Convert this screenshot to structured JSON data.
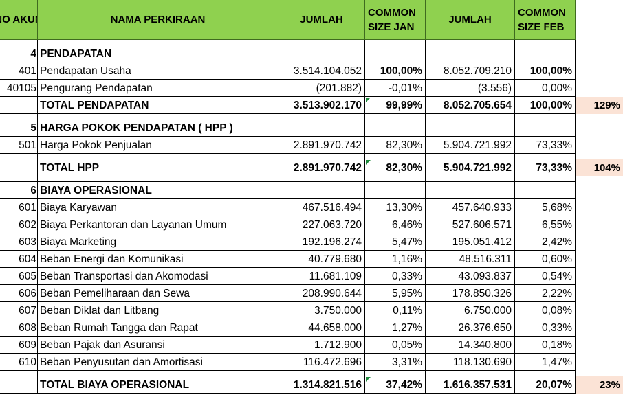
{
  "header": {
    "no_akun": "NO AKUN",
    "nama": "NAMA PERKIRAAN",
    "jumlah_jan": "JUMLAH",
    "cs_jan": "COMMON SIZE JAN",
    "jumlah_feb": "JUMLAH",
    "cs_feb": "COMMON SIZE FEB"
  },
  "rows": [
    {
      "kind": "blank"
    },
    {
      "kind": "section",
      "no": "4",
      "name": "PENDAPATAN"
    },
    {
      "kind": "item",
      "no": "401",
      "name": "Pendapatan Usaha",
      "jan": "3.514.104.052",
      "csjan": "100,00%",
      "feb": "8.052.709.210",
      "csfeb": "100,00%",
      "boldcs": true
    },
    {
      "kind": "item",
      "no": "40105",
      "name": "Pengurang Pendapatan",
      "jan": "(201.882)",
      "csjan": "-0,01%",
      "feb": "(3.556)",
      "csfeb": "0,00%"
    },
    {
      "kind": "total",
      "name": "TOTAL  PENDAPATAN",
      "jan": "3.513.902.170",
      "csjan": "99,99%",
      "feb": "8.052.705.654",
      "csfeb": "100,00%",
      "extra": "129%",
      "flag": true
    },
    {
      "kind": "blank"
    },
    {
      "kind": "section",
      "no": "5",
      "name": "HARGA POKOK PENDAPATAN ( HPP )"
    },
    {
      "kind": "item",
      "no": "501",
      "name": "Harga Pokok Penjualan",
      "jan": "2.891.970.742",
      "csjan": "82,30%",
      "feb": "5.904.721.992",
      "csfeb": "73,33%"
    },
    {
      "kind": "blank"
    },
    {
      "kind": "total",
      "name": "TOTAL  HPP",
      "jan": "2.891.970.742",
      "csjan": "82,30%",
      "feb": "5.904.721.992",
      "csfeb": "73,33%",
      "extra": "104%",
      "flag": true
    },
    {
      "kind": "blank"
    },
    {
      "kind": "section",
      "no": "6",
      "name": "BIAYA OPERASIONAL"
    },
    {
      "kind": "item",
      "no": "601",
      "name": "Biaya Karyawan",
      "jan": "467.516.494",
      "csjan": "13,30%",
      "feb": "457.640.933",
      "csfeb": "5,68%"
    },
    {
      "kind": "item",
      "no": "602",
      "name": "Biaya Perkantoran dan Layanan Umum",
      "jan": "227.063.720",
      "csjan": "6,46%",
      "feb": "527.606.571",
      "csfeb": "6,55%"
    },
    {
      "kind": "item",
      "no": "603",
      "name": "Biaya Marketing",
      "jan": "192.196.274",
      "csjan": "5,47%",
      "feb": "195.051.412",
      "csfeb": "2,42%"
    },
    {
      "kind": "item",
      "no": "604",
      "name": "Beban Energi dan Komunikasi",
      "jan": "40.779.680",
      "csjan": "1,16%",
      "feb": "48.516.311",
      "csfeb": "0,60%"
    },
    {
      "kind": "item",
      "no": "605",
      "name": "Beban Transportasi dan Akomodasi",
      "jan": "11.681.109",
      "csjan": "0,33%",
      "feb": "43.093.837",
      "csfeb": "0,54%"
    },
    {
      "kind": "item",
      "no": "606",
      "name": "Beban Pemeliharaan dan Sewa",
      "jan": "208.990.644",
      "csjan": "5,95%",
      "feb": "178.850.326",
      "csfeb": "2,22%"
    },
    {
      "kind": "item",
      "no": "607",
      "name": "Beban Diklat dan Litbang",
      "jan": "3.750.000",
      "csjan": "0,11%",
      "feb": "6.750.000",
      "csfeb": "0,08%"
    },
    {
      "kind": "item",
      "no": "608",
      "name": "Beban Rumah Tangga dan Rapat",
      "jan": "44.658.000",
      "csjan": "1,27%",
      "feb": "26.376.650",
      "csfeb": "0,33%"
    },
    {
      "kind": "item",
      "no": "609",
      "name": "Beban Pajak dan Asuransi",
      "jan": "1.712.900",
      "csjan": "0,05%",
      "feb": "14.340.800",
      "csfeb": "0,18%"
    },
    {
      "kind": "item",
      "no": "610",
      "name": "Beban Penyusutan dan Amortisasi",
      "jan": "116.472.696",
      "csjan": "3,31%",
      "feb": "118.130.690",
      "csfeb": "1,47%"
    },
    {
      "kind": "blank"
    },
    {
      "kind": "total",
      "name": "TOTAL BIAYA OPERASIONAL",
      "jan": "1.314.821.516",
      "csjan": "37,42%",
      "feb": "1.616.357.531",
      "csfeb": "20,07%",
      "extra": "23%",
      "flag": true
    }
  ],
  "colors": {
    "header_green": "#8fd14f",
    "highlight_peach": "#fbe3d6",
    "flag_green": "#1e8a3c"
  }
}
